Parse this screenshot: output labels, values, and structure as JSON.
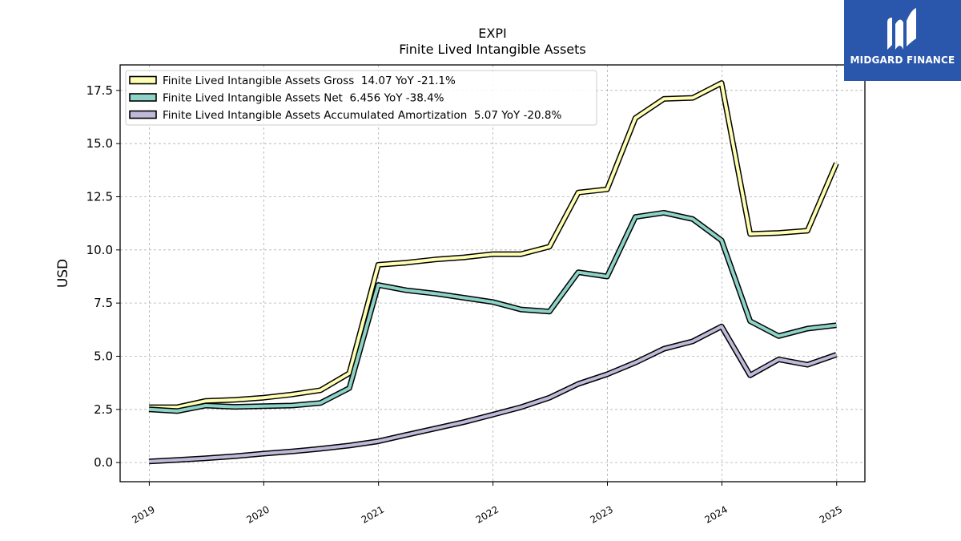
{
  "chart_data": {
    "type": "line",
    "title": "EXPI",
    "subtitle": "Finite Lived Intangible Assets",
    "xlabel": "",
    "ylabel": "USD",
    "x_ticks": [
      "2019",
      "2020",
      "2021",
      "2022",
      "2023",
      "2024",
      "2025"
    ],
    "y_ticks": [
      "0.0",
      "2.5",
      "5.0",
      "7.5",
      "10.0",
      "12.5",
      "15.0",
      "17.5"
    ],
    "xlim": [
      "2018-09-30",
      "2025-04-01"
    ],
    "ylim": [
      -0.9,
      18.7
    ],
    "grid": true,
    "legend_position": "top-left",
    "x": [
      "2018-12-31",
      "2019-03-31",
      "2019-06-30",
      "2019-09-30",
      "2019-12-31",
      "2020-03-31",
      "2020-06-30",
      "2020-09-30",
      "2020-12-31",
      "2021-03-31",
      "2021-06-30",
      "2021-09-30",
      "2021-12-31",
      "2022-03-31",
      "2022-06-30",
      "2022-09-30",
      "2022-12-31",
      "2023-03-31",
      "2023-06-30",
      "2023-09-30",
      "2023-12-31",
      "2024-03-31",
      "2024-06-30",
      "2024-09-30",
      "2024-12-31"
    ],
    "series": [
      {
        "name": "Finite Lived Intangible Assets Gross",
        "legend": "Finite Lived Intangible Assets Gross  14.07 YoY -21.1%",
        "color": "#ffffb3",
        "values": [
          2.6,
          2.6,
          2.9,
          2.95,
          3.05,
          3.2,
          3.4,
          4.2,
          9.3,
          9.4,
          9.55,
          9.65,
          9.8,
          9.8,
          10.15,
          12.7,
          12.85,
          16.2,
          17.1,
          17.15,
          17.85,
          10.75,
          10.8,
          10.9,
          14.07
        ]
      },
      {
        "name": "Finite Lived Intangible Assets Net",
        "legend": "Finite Lived Intangible Assets Net  6.456 YoY -38.4%",
        "color": "#8dd3c7",
        "values": [
          2.5,
          2.42,
          2.68,
          2.62,
          2.65,
          2.68,
          2.8,
          3.5,
          8.35,
          8.1,
          7.95,
          7.75,
          7.55,
          7.2,
          7.1,
          8.95,
          8.75,
          11.55,
          11.75,
          11.45,
          10.45,
          6.65,
          5.95,
          6.3,
          6.456
        ]
      },
      {
        "name": "Finite Lived Intangible Assets Accumulated Amortization",
        "legend": "Finite Lived Intangible Assets Accumulated Amortization  5.07 YoY -20.8%",
        "color": "#bebada",
        "values": [
          0.05,
          0.12,
          0.2,
          0.3,
          0.42,
          0.52,
          0.65,
          0.8,
          1.0,
          1.3,
          1.6,
          1.9,
          2.25,
          2.6,
          3.05,
          3.7,
          4.15,
          4.7,
          5.35,
          5.7,
          6.4,
          4.1,
          4.85,
          4.6,
          5.07
        ]
      }
    ]
  },
  "logo": {
    "text": "MIDGARD FINANCE"
  }
}
